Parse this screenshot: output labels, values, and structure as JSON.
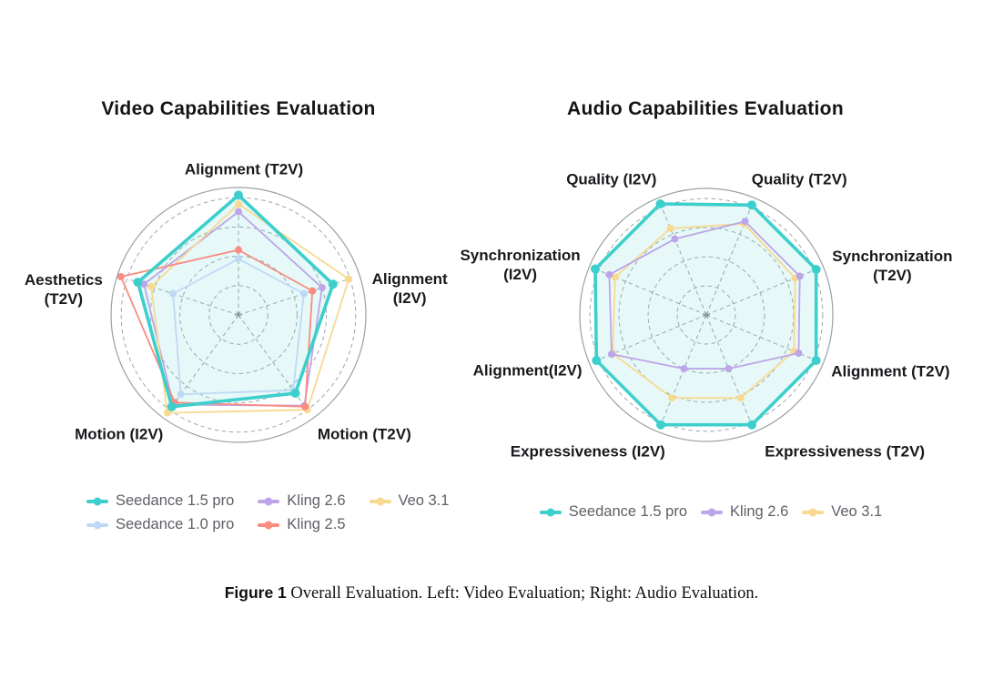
{
  "page": {
    "caption_bold": "Figure 1",
    "caption_text": " Overall Evaluation. Left: Video Evaluation; Right: Audio Evaluation."
  },
  "colors": {
    "seedance_15_pro": "#3DCFCC",
    "seedance_10_pro": "#BFD9F5",
    "kling_26": "#BCA5E8",
    "kling_25": "#F98B80",
    "veo_31": "#F7D98F",
    "grid_dashed": "#8f969b",
    "outer_ring": "#9aa0a4",
    "teal_fill": "rgba(61,207,204,0.13)"
  },
  "chart_data": [
    {
      "type": "radar",
      "title": "Video Capabilities Evaluation",
      "axes": [
        {
          "label": "Alignment (T2V)",
          "lines": [
            "Alignment (T2V)"
          ]
        },
        {
          "label": "Alignment (I2V)",
          "lines": [
            "Alignment",
            "(I2V)"
          ]
        },
        {
          "label": "Motion (T2V)",
          "lines": [
            "Motion (T2V)"
          ]
        },
        {
          "label": "Motion (I2V)",
          "lines": [
            "Motion (I2V)"
          ]
        },
        {
          "label": "Aesthetics (T2V)",
          "lines": [
            "Aesthetics",
            "(T2V)"
          ]
        }
      ],
      "scale": {
        "min": 0,
        "max": 1,
        "gridlines": [
          0.23,
          0.46,
          0.69,
          0.92
        ]
      },
      "grid": "dashed concentric circles + dashed spokes + solid outer ring",
      "legend_position": "bottom",
      "series": [
        {
          "name": "Seedance 1.5 pro",
          "color": "#3DCFCC",
          "filled": true,
          "values": [
            0.94,
            0.78,
            0.76,
            0.89,
            0.83
          ]
        },
        {
          "name": "Seedance 1.0 pro",
          "color": "#BFD9F5",
          "filled": false,
          "values": [
            0.44,
            0.54,
            0.73,
            0.77,
            0.54
          ]
        },
        {
          "name": "Kling 2.6",
          "color": "#BCA5E8",
          "filled": false,
          "values": [
            0.81,
            0.69,
            0.88,
            0.87,
            0.78
          ]
        },
        {
          "name": "Kling 2.5",
          "color": "#F98B80",
          "filled": false,
          "values": [
            0.51,
            0.61,
            0.89,
            0.85,
            0.97
          ]
        },
        {
          "name": "Veo 3.1",
          "color": "#F7D98F",
          "filled": false,
          "values": [
            0.87,
            0.91,
            0.92,
            0.95,
            0.72
          ]
        }
      ],
      "legend_rows": [
        [
          "Seedance 1.5 pro",
          "Kling 2.6",
          "Veo 3.1"
        ],
        [
          "Seedance 1.0 pro",
          "Kling 2.5"
        ]
      ]
    },
    {
      "type": "radar",
      "title": "Audio Capabilities Evaluation",
      "axes": [
        {
          "label": "Quality (T2V)",
          "lines": [
            "Quality (T2V)"
          ]
        },
        {
          "label": "Synchronization (T2V)",
          "lines": [
            "Synchronization",
            "(T2V)"
          ]
        },
        {
          "label": "Alignment (T2V)",
          "lines": [
            "Alignment (T2V)"
          ]
        },
        {
          "label": "Expressiveness (T2V)",
          "lines": [
            "Expressiveness (T2V)"
          ]
        },
        {
          "label": "Expressiveness (I2V)",
          "lines": [
            "Expressiveness (I2V)"
          ]
        },
        {
          "label": "Alignment(I2V)",
          "lines": [
            "Alignment(I2V)"
          ]
        },
        {
          "label": "Synchronization (I2V)",
          "lines": [
            "Synchronization",
            "(I2V)"
          ]
        },
        {
          "label": "Quality (I2V)",
          "lines": [
            "Quality (I2V)"
          ]
        }
      ],
      "scale": {
        "min": 0,
        "max": 1,
        "gridlines": [
          0.23,
          0.46,
          0.69,
          0.92
        ]
      },
      "grid": "dashed concentric circles + dashed spokes + solid outer ring",
      "legend_position": "bottom",
      "series": [
        {
          "name": "Seedance 1.5 pro",
          "color": "#3DCFCC",
          "filled": true,
          "values": [
            0.94,
            0.94,
            0.94,
            0.94,
            0.94,
            0.94,
            0.95,
            0.95
          ]
        },
        {
          "name": "Kling 2.6",
          "color": "#BCA5E8",
          "filled": false,
          "values": [
            0.8,
            0.8,
            0.79,
            0.46,
            0.46,
            0.81,
            0.83,
            0.65
          ]
        },
        {
          "name": "Veo 3.1",
          "color": "#F7D98F",
          "filled": false,
          "values": [
            0.78,
            0.76,
            0.75,
            0.71,
            0.71,
            0.8,
            0.78,
            0.74
          ]
        }
      ],
      "legend_rows": [
        [
          "Seedance 1.5 pro",
          "Kling 2.6",
          "Veo 3.1"
        ]
      ]
    }
  ]
}
